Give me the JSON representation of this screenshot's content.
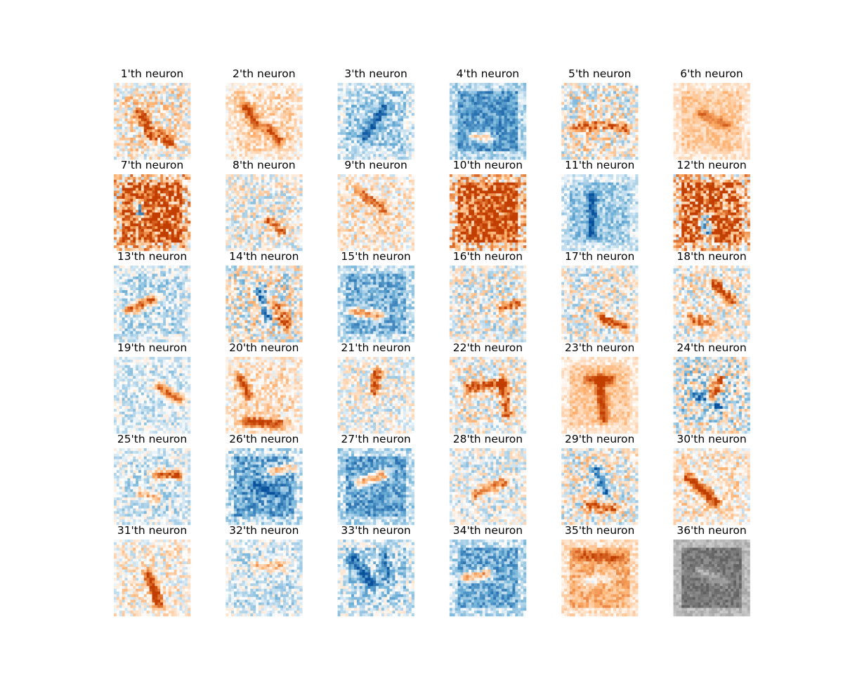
{
  "chart_data": {
    "type": "heatmap",
    "grid": {
      "rows": 6,
      "cols": 6,
      "pixels_per_side": 28
    },
    "axes_visible": false,
    "colormap": {
      "negative": "#08519c",
      "zero": "#ffffff",
      "positive": "#c23e00",
      "grayscale_panel": "#000000"
    },
    "panels": [
      {
        "title": "1'th neuron",
        "tone": "mixed",
        "bg": 0.15,
        "noise": 0.45,
        "strokes": [
          [
            0.35,
            0.4,
            0.5,
            0.7,
            0.9
          ],
          [
            0.6,
            0.65,
            0.75,
            0.8,
            0.7
          ]
        ]
      },
      {
        "title": "2'th neuron",
        "tone": "warm",
        "bg": 0.2,
        "noise": 0.3,
        "strokes": [
          [
            0.25,
            0.3,
            0.4,
            0.55,
            0.9
          ],
          [
            0.55,
            0.6,
            0.7,
            0.75,
            0.7
          ]
        ]
      },
      {
        "title": "3'th neuron",
        "tone": "cool",
        "bg": -0.25,
        "noise": 0.35,
        "strokes": [
          [
            0.35,
            0.7,
            0.6,
            0.35,
            -0.8
          ]
        ]
      },
      {
        "title": "4'th neuron",
        "tone": "cool",
        "bg": -0.6,
        "noise": 0.3,
        "strokes": [
          [
            0.3,
            0.7,
            0.5,
            0.72,
            0.9
          ]
        ]
      },
      {
        "title": "5'th neuron",
        "tone": "mixed",
        "bg": 0.05,
        "noise": 0.5,
        "strokes": [
          [
            0.2,
            0.6,
            0.45,
            0.55,
            0.9
          ],
          [
            0.6,
            0.55,
            0.85,
            0.6,
            0.8
          ]
        ]
      },
      {
        "title": "6'th neuron",
        "tone": "warm",
        "bg": 0.3,
        "noise": 0.2,
        "strokes": [
          [
            0.35,
            0.4,
            0.7,
            0.55,
            0.5
          ]
        ]
      },
      {
        "title": "7'th neuron",
        "tone": "mixed",
        "bg": 0.85,
        "noise": 0.7,
        "strokes": [
          [
            0.3,
            0.4,
            0.35,
            0.5,
            -1.2
          ]
        ]
      },
      {
        "title": "8'th neuron",
        "tone": "mixed",
        "bg": 0.0,
        "noise": 0.4,
        "strokes": [
          [
            0.55,
            0.6,
            0.75,
            0.75,
            0.8
          ]
        ]
      },
      {
        "title": "9'th neuron",
        "tone": "warm",
        "bg": 0.1,
        "noise": 0.4,
        "strokes": [
          [
            0.3,
            0.25,
            0.6,
            0.45,
            0.7
          ]
        ]
      },
      {
        "title": "10'th neuron",
        "tone": "mixed",
        "bg": 0.9,
        "noise": 0.65,
        "strokes": [
          [
            0.5,
            0.5,
            0.5,
            0.5,
            0.4
          ]
        ]
      },
      {
        "title": "11'th neuron",
        "tone": "cool",
        "bg": -0.3,
        "noise": 0.3,
        "strokes": [
          [
            0.4,
            0.3,
            0.4,
            0.8,
            -0.7
          ]
        ]
      },
      {
        "title": "12'th neuron",
        "tone": "mixed",
        "bg": 0.8,
        "noise": 0.7,
        "strokes": [
          [
            0.4,
            0.55,
            0.45,
            0.8,
            -1.1
          ]
        ]
      },
      {
        "title": "13'th neuron",
        "tone": "cool",
        "bg": -0.15,
        "noise": 0.35,
        "strokes": [
          [
            0.2,
            0.58,
            0.5,
            0.45,
            1.1
          ]
        ]
      },
      {
        "title": "14'th neuron",
        "tone": "mixed",
        "bg": 0.05,
        "noise": 0.55,
        "strokes": [
          [
            0.6,
            0.5,
            0.8,
            0.75,
            0.9
          ],
          [
            0.45,
            0.3,
            0.55,
            0.7,
            -0.7
          ]
        ]
      },
      {
        "title": "15'th neuron",
        "tone": "cool",
        "bg": -0.45,
        "noise": 0.35,
        "strokes": [
          [
            0.2,
            0.6,
            0.55,
            0.65,
            1.1
          ]
        ]
      },
      {
        "title": "16'th neuron",
        "tone": "mixed",
        "bg": 0.0,
        "noise": 0.45,
        "strokes": [
          [
            0.7,
            0.55,
            0.9,
            0.5,
            0.9
          ]
        ]
      },
      {
        "title": "17'th neuron",
        "tone": "mixed",
        "bg": 0.0,
        "noise": 0.45,
        "strokes": [
          [
            0.55,
            0.7,
            0.85,
            0.8,
            0.9
          ]
        ]
      },
      {
        "title": "18'th neuron",
        "tone": "mixed",
        "bg": 0.05,
        "noise": 0.45,
        "strokes": [
          [
            0.55,
            0.25,
            0.75,
            0.45,
            1.0
          ],
          [
            0.25,
            0.7,
            0.45,
            0.75,
            0.8
          ]
        ]
      },
      {
        "title": "19'th neuron",
        "tone": "cool",
        "bg": -0.1,
        "noise": 0.3,
        "strokes": [
          [
            0.6,
            0.4,
            0.85,
            0.55,
            1.0
          ]
        ]
      },
      {
        "title": "20'th neuron",
        "tone": "warm",
        "bg": 0.15,
        "noise": 0.35,
        "strokes": [
          [
            0.3,
            0.85,
            0.7,
            0.88,
            1.0
          ],
          [
            0.2,
            0.3,
            0.3,
            0.5,
            0.8
          ]
        ]
      },
      {
        "title": "21'th neuron",
        "tone": "mixed",
        "bg": 0.0,
        "noise": 0.35,
        "strokes": [
          [
            0.52,
            0.2,
            0.48,
            0.45,
            1.0
          ]
        ]
      },
      {
        "title": "22'th neuron",
        "tone": "mixed",
        "bg": 0.05,
        "noise": 0.45,
        "strokes": [
          [
            0.25,
            0.4,
            0.7,
            0.35,
            0.9
          ],
          [
            0.7,
            0.3,
            0.75,
            0.75,
            0.8
          ]
        ]
      },
      {
        "title": "23'th neuron",
        "tone": "warm",
        "bg": 0.3,
        "noise": 0.2,
        "strokes": [
          [
            0.5,
            0.3,
            0.55,
            0.8,
            0.8
          ],
          [
            0.35,
            0.3,
            0.65,
            0.3,
            0.7
          ]
        ]
      },
      {
        "title": "24'th neuron",
        "tone": "mixed",
        "bg": -0.05,
        "noise": 0.55,
        "strokes": [
          [
            0.6,
            0.3,
            0.5,
            0.55,
            1.0
          ],
          [
            0.3,
            0.5,
            0.6,
            0.65,
            -0.8
          ]
        ]
      },
      {
        "title": "25'th neuron",
        "tone": "cool",
        "bg": -0.1,
        "noise": 0.35,
        "strokes": [
          [
            0.55,
            0.35,
            0.85,
            0.35,
            1.1
          ],
          [
            0.35,
            0.6,
            0.55,
            0.65,
            0.6
          ]
        ]
      },
      {
        "title": "26'th neuron",
        "tone": "cool",
        "bg": -0.5,
        "noise": 0.4,
        "strokes": [
          [
            0.6,
            0.3,
            0.85,
            0.25,
            0.9
          ],
          [
            0.4,
            0.5,
            0.7,
            0.6,
            -0.5
          ]
        ]
      },
      {
        "title": "27'th neuron",
        "tone": "cool",
        "bg": -0.55,
        "noise": 0.35,
        "strokes": [
          [
            0.3,
            0.45,
            0.6,
            0.35,
            1.2
          ]
        ]
      },
      {
        "title": "28'th neuron",
        "tone": "mixed",
        "bg": -0.05,
        "noise": 0.35,
        "strokes": [
          [
            0.35,
            0.6,
            0.7,
            0.45,
            0.8
          ]
        ]
      },
      {
        "title": "29'th neuron",
        "tone": "mixed",
        "bg": 0.05,
        "noise": 0.5,
        "strokes": [
          [
            0.35,
            0.75,
            0.7,
            0.8,
            0.8
          ],
          [
            0.45,
            0.3,
            0.6,
            0.6,
            -0.8
          ]
        ]
      },
      {
        "title": "30'th neuron",
        "tone": "warm",
        "bg": 0.1,
        "noise": 0.4,
        "strokes": [
          [
            0.2,
            0.4,
            0.55,
            0.7,
            1.1
          ]
        ]
      },
      {
        "title": "31'th neuron",
        "tone": "warm",
        "bg": 0.05,
        "noise": 0.4,
        "strokes": [
          [
            0.45,
            0.45,
            0.6,
            0.85,
            1.2
          ]
        ]
      },
      {
        "title": "32'th neuron",
        "tone": "cool",
        "bg": -0.1,
        "noise": 0.35,
        "strokes": [
          [
            0.4,
            0.35,
            0.75,
            0.35,
            0.6
          ]
        ]
      },
      {
        "title": "33'th neuron",
        "tone": "cool",
        "bg": -0.2,
        "noise": 0.4,
        "strokes": [
          [
            0.2,
            0.25,
            0.45,
            0.6,
            -0.8
          ],
          [
            0.6,
            0.2,
            0.65,
            0.5,
            -0.6
          ]
        ]
      },
      {
        "title": "34'th neuron",
        "tone": "cool",
        "bg": -0.5,
        "noise": 0.35,
        "strokes": [
          [
            0.2,
            0.5,
            0.5,
            0.45,
            1.1
          ]
        ]
      },
      {
        "title": "35'th neuron",
        "tone": "warm",
        "bg": 0.45,
        "noise": 0.25,
        "strokes": [
          [
            0.3,
            0.55,
            0.6,
            0.5,
            -0.4
          ],
          [
            0.25,
            0.2,
            0.8,
            0.25,
            0.5
          ]
        ]
      },
      {
        "title": "36'th neuron",
        "tone": "gray",
        "bg": 0.55,
        "noise": 0.15,
        "strokes": [
          [
            0.35,
            0.4,
            0.65,
            0.55,
            -0.3
          ]
        ]
      }
    ]
  }
}
